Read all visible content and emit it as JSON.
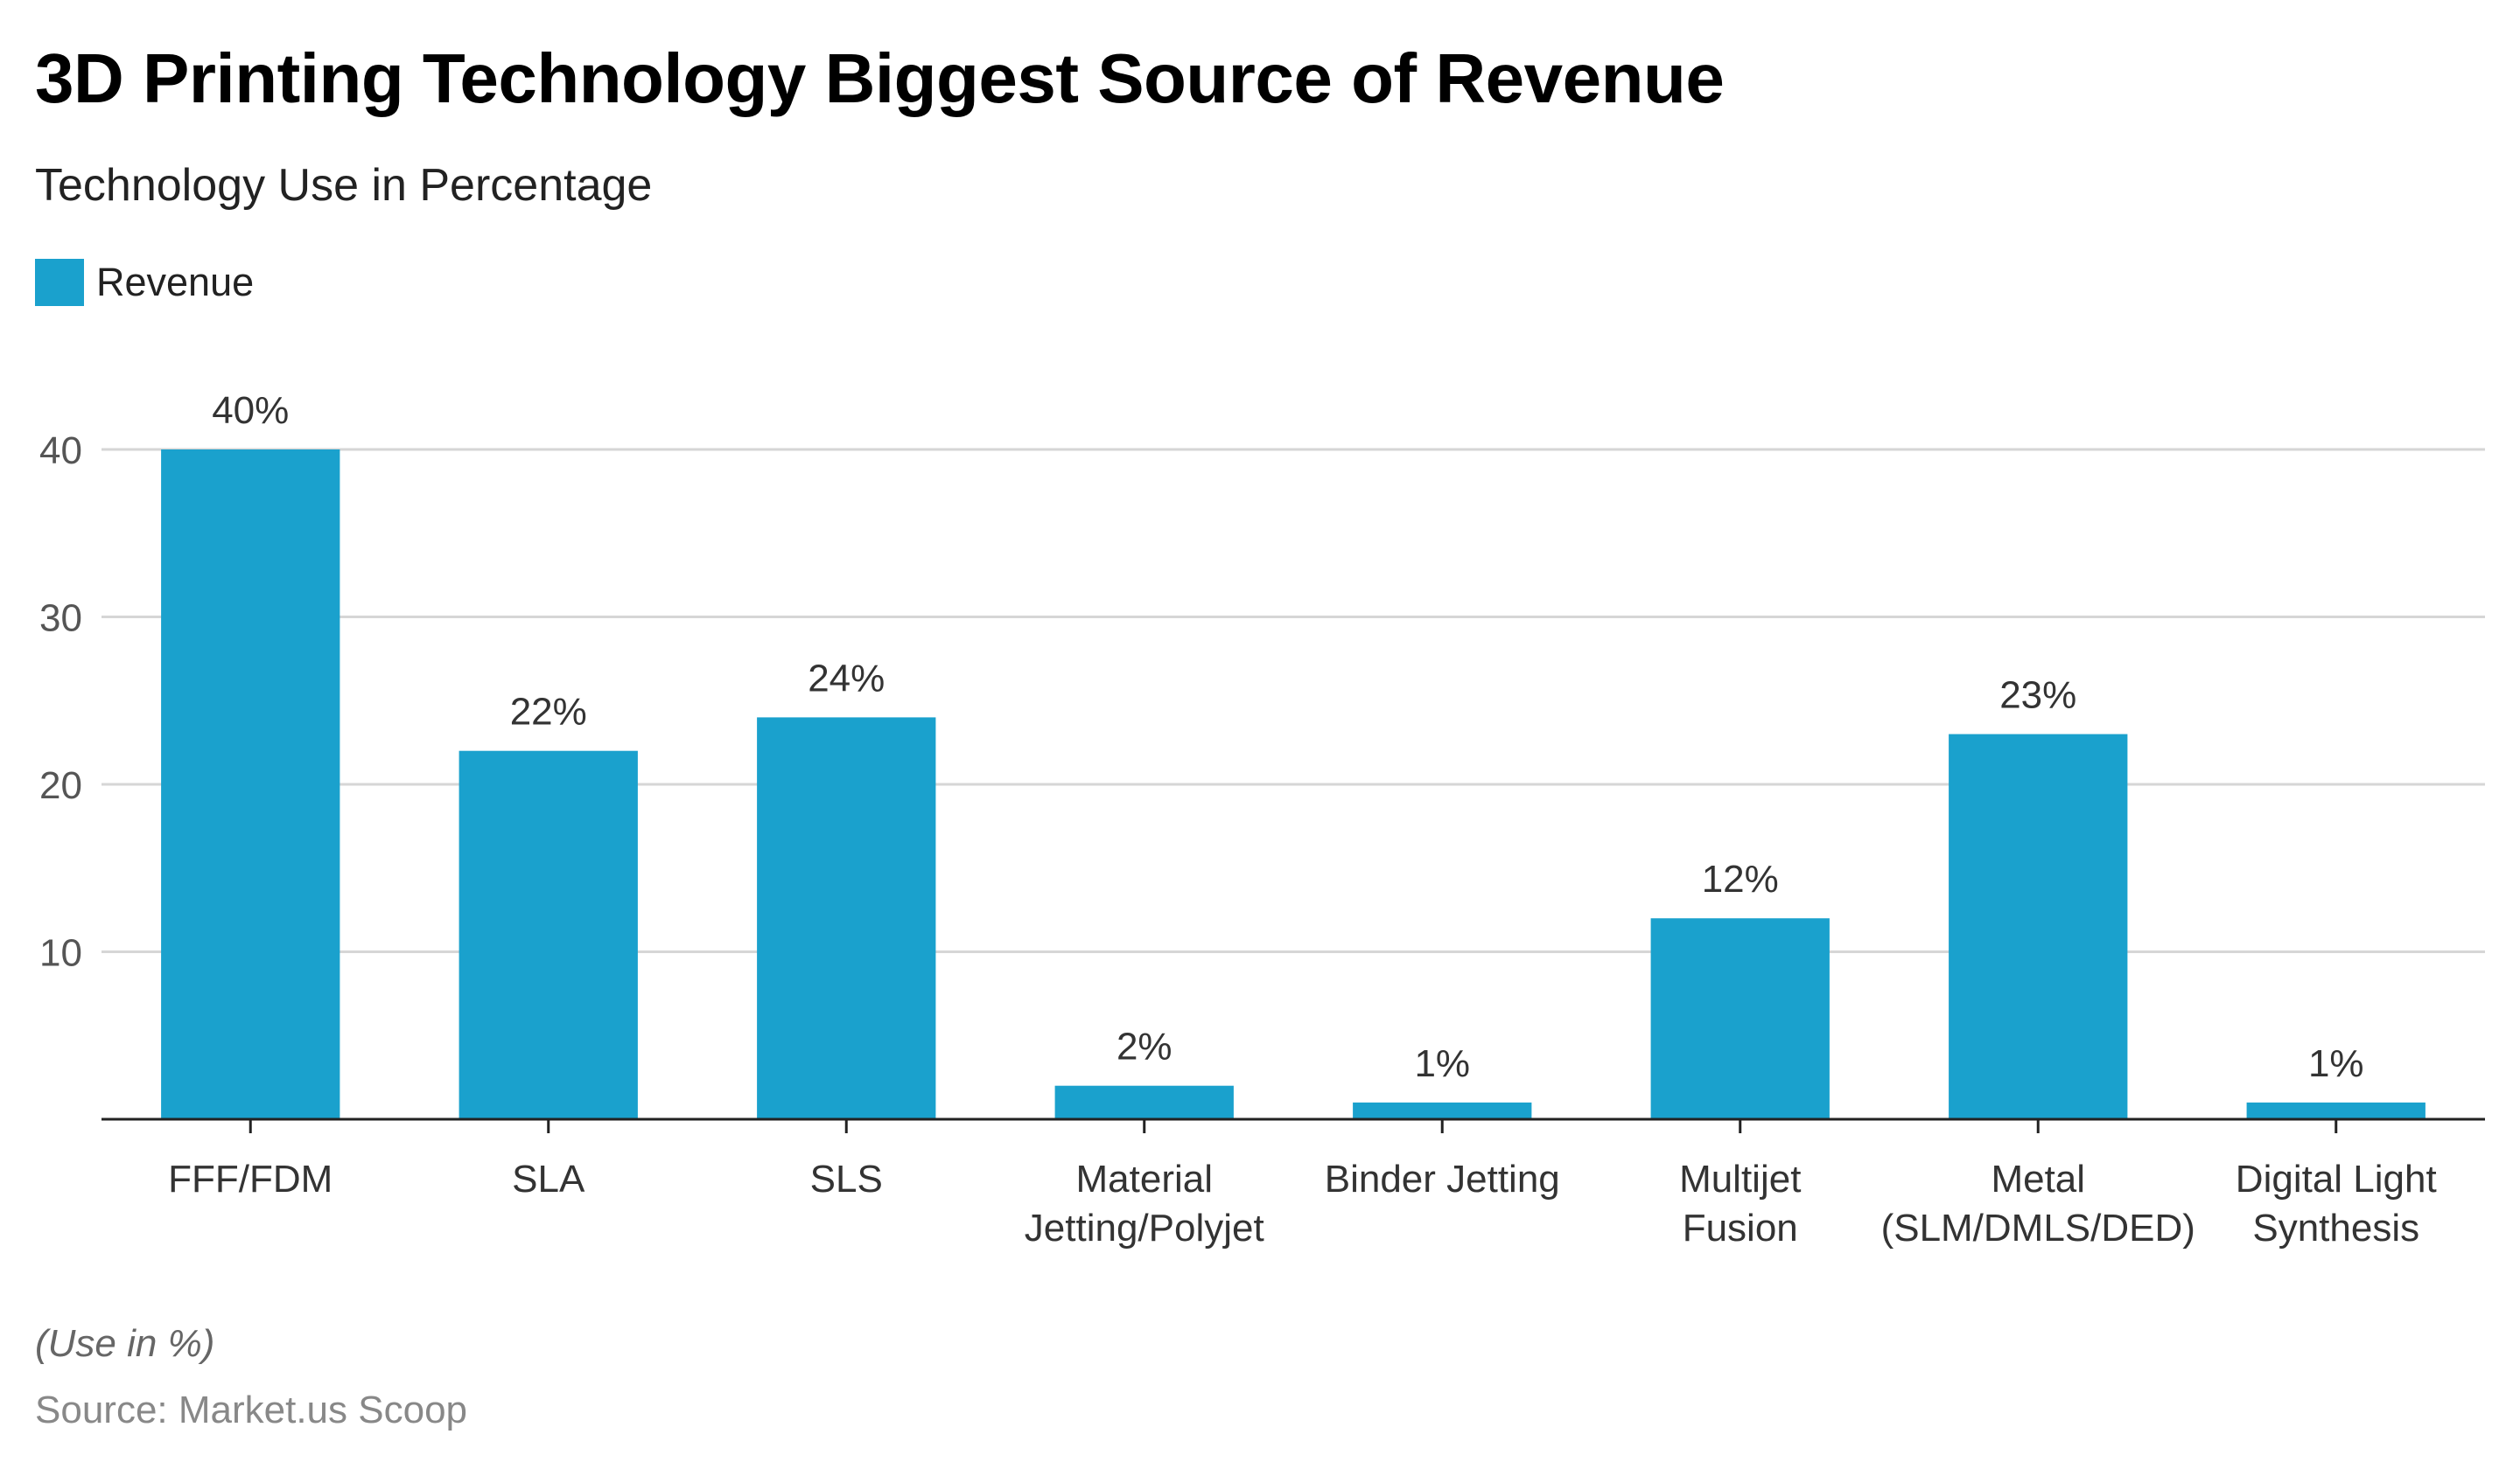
{
  "chart_data": {
    "type": "bar",
    "title": "3D Printing Technology Biggest Source of Revenue",
    "subtitle": "Technology Use in Percentage",
    "categories": [
      [
        "FFF/FDM"
      ],
      [
        "SLA"
      ],
      [
        "SLS"
      ],
      [
        "Material",
        "Jetting/Polyjet"
      ],
      [
        "Binder Jetting"
      ],
      [
        "Multijet",
        "Fusion"
      ],
      [
        "Metal",
        "(SLM/DMLS/DED)"
      ],
      [
        "Digital Light",
        "Synthesis"
      ]
    ],
    "series": [
      {
        "name": "Revenue",
        "color": "#1aa1cd",
        "values": [
          40,
          22,
          24,
          2,
          1,
          12,
          23,
          1
        ]
      }
    ],
    "data_labels": [
      "40%",
      "22%",
      "24%",
      "2%",
      "1%",
      "12%",
      "23%",
      "1%"
    ],
    "yticks": [
      10,
      20,
      30,
      40
    ],
    "ylim": [
      0,
      40
    ],
    "grid": true,
    "legend_position": "top-left",
    "xlabel": "",
    "ylabel": "",
    "note": "(Use in %)",
    "source": "Source: Market.us Scoop"
  }
}
